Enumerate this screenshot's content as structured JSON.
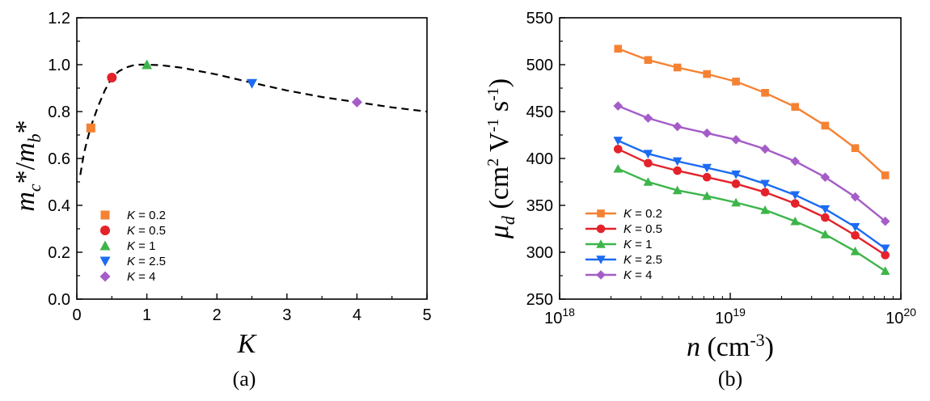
{
  "chart_data": [
    {
      "type": "scatter",
      "panel_label": "(a)",
      "xlabel": "K",
      "ylabel": "m_c*/m_b*",
      "xlim": [
        0,
        5
      ],
      "ylim": [
        0.0,
        1.2
      ],
      "x_ticks": [
        "0",
        "1",
        "2",
        "3",
        "4",
        "5"
      ],
      "y_ticks": [
        "0.0",
        "0.2",
        "0.4",
        "0.6",
        "0.8",
        "1.0",
        "1.2"
      ],
      "legend_position": "lower-left",
      "curve": {
        "style": "dashed",
        "x": [
          0.05,
          0.1,
          0.15,
          0.2,
          0.3,
          0.4,
          0.5,
          0.6,
          0.7,
          0.8,
          0.9,
          1.0,
          1.2,
          1.5,
          2.0,
          2.5,
          3.0,
          3.5,
          4.0,
          4.5,
          5.0
        ],
        "y": [
          0.53,
          0.62,
          0.68,
          0.735,
          0.82,
          0.89,
          0.945,
          0.972,
          0.988,
          0.997,
          1.0,
          1.0,
          0.998,
          0.987,
          0.958,
          0.923,
          0.89,
          0.862,
          0.84,
          0.818,
          0.8
        ]
      },
      "series": [
        {
          "name": "K = 0.2",
          "marker": "square",
          "color": "#F58233",
          "x": [
            0.2
          ],
          "y": [
            0.73
          ]
        },
        {
          "name": "K = 0.5",
          "marker": "circle",
          "color": "#E4222A",
          "x": [
            0.5
          ],
          "y": [
            0.945
          ]
        },
        {
          "name": "K = 1",
          "marker": "triangle-up",
          "color": "#3DB54A",
          "x": [
            1.0
          ],
          "y": [
            1.0
          ]
        },
        {
          "name": "K = 2.5",
          "marker": "triangle-down",
          "color": "#1C6BF2",
          "x": [
            2.5
          ],
          "y": [
            0.92
          ]
        },
        {
          "name": "K = 4",
          "marker": "diamond",
          "color": "#A45DC8",
          "x": [
            4.0
          ],
          "y": [
            0.84
          ]
        }
      ]
    },
    {
      "type": "line",
      "panel_label": "(b)",
      "xlabel": "n (cm^-3)",
      "ylabel": "μ_d (cm^2 V^-1 s^-1)",
      "x_scale": "log",
      "xlim": [
        1e+18,
        1e+20
      ],
      "ylim": [
        250,
        550
      ],
      "x_ticks": [
        "10^18",
        "10^19",
        "10^20"
      ],
      "y_ticks": [
        "250",
        "300",
        "350",
        "400",
        "450",
        "500",
        "550"
      ],
      "legend_position": "lower-left",
      "x": [
        2.2e+18,
        3.3e+18,
        4.9e+18,
        7.3e+18,
        1.08e+19,
        1.6e+19,
        2.4e+19,
        3.6e+19,
        5.4e+19,
        8.1e+19
      ],
      "series": [
        {
          "name": "K = 0.2",
          "marker": "square",
          "color": "#F58233",
          "values": [
            517,
            505,
            497,
            490,
            482,
            470,
            455,
            435,
            411,
            382
          ]
        },
        {
          "name": "K = 0.5",
          "marker": "circle",
          "color": "#E4222A",
          "values": [
            410,
            395,
            387,
            380,
            373,
            364,
            352,
            337,
            318,
            297
          ]
        },
        {
          "name": "K = 1",
          "marker": "triangle-up",
          "color": "#3DB54A",
          "values": [
            389,
            375,
            366,
            360,
            353,
            345,
            333,
            319,
            301,
            280
          ]
        },
        {
          "name": "K = 2.5",
          "marker": "triangle-down",
          "color": "#1C6BF2",
          "values": [
            419,
            405,
            397,
            390,
            383,
            373,
            361,
            346,
            327,
            304
          ]
        },
        {
          "name": "K = 4",
          "marker": "diamond",
          "color": "#A45DC8",
          "values": [
            456,
            443,
            434,
            427,
            420,
            410,
            397,
            380,
            359,
            333
          ]
        }
      ]
    }
  ]
}
